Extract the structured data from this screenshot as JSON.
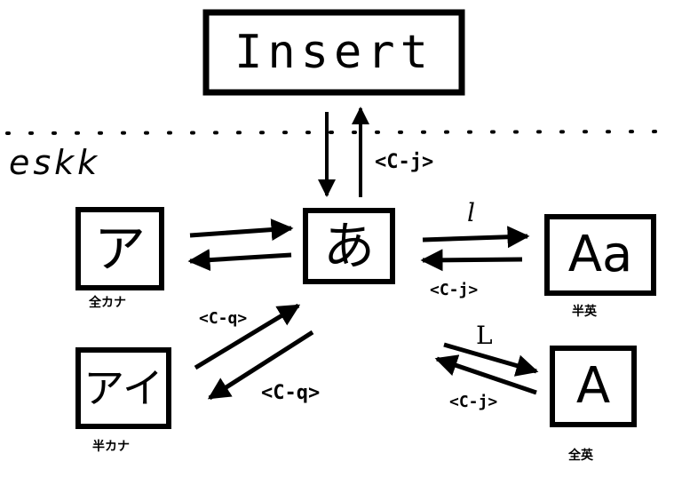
{
  "nodes": {
    "insert": {
      "label": "Insert"
    },
    "hiragana": {
      "label": "あ"
    },
    "zenkaku_katakana": {
      "label": "ア",
      "caption": "全カナ"
    },
    "hankaku_katakana": {
      "label": "アイ",
      "caption": "半カナ"
    },
    "ascii": {
      "label": "Aa",
      "caption": "半英"
    },
    "zenkaku_latin": {
      "label": "A",
      "caption": "全英"
    }
  },
  "area": {
    "label": "eskk"
  },
  "edges": {
    "hiragana_to_insert": "<C-j>",
    "hiragana_to_ascii": "l",
    "ascii_to_hiragana": "<C-j>",
    "hiragana_to_zenkaku_latin": "L",
    "zenkaku_latin_to_hiragana": "<C-j>",
    "hankaku_to_hiragana": "<C-q>",
    "hiragana_to_hankaku": "<C-q>"
  }
}
